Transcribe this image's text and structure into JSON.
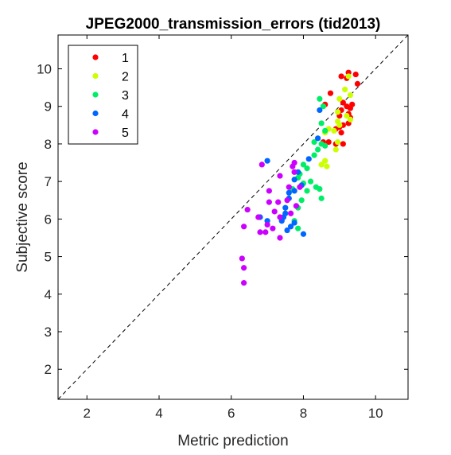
{
  "chart_data": {
    "type": "scatter",
    "title": "JPEG2000_transmission_errors (tid2013)",
    "xlabel": "Metric prediction",
    "ylabel": "Subjective score",
    "xlim": [
      1.2,
      10.9
    ],
    "ylim": [
      1.2,
      10.9
    ],
    "xticks": [
      2,
      4,
      6,
      8,
      10
    ],
    "yticks": [
      2,
      3,
      4,
      5,
      6,
      7,
      8,
      9,
      10
    ],
    "grid": false,
    "legend_position": "top-left",
    "reference_line": "y = x (dashed)",
    "series": [
      {
        "name": "1",
        "color": "#ff0000",
        "points": [
          [
            9.25,
            9.9
          ],
          [
            9.45,
            9.85
          ],
          [
            9.2,
            9.75
          ],
          [
            9.05,
            9.8
          ],
          [
            9.5,
            9.6
          ],
          [
            8.75,
            9.35
          ],
          [
            9.1,
            9.1
          ],
          [
            9.35,
            9.05
          ],
          [
            8.6,
            9.05
          ],
          [
            9.2,
            9.0
          ],
          [
            9.3,
            8.95
          ],
          [
            9.05,
            8.9
          ],
          [
            9.25,
            8.8
          ],
          [
            9.0,
            8.75
          ],
          [
            9.3,
            8.7
          ],
          [
            8.9,
            8.4
          ],
          [
            9.1,
            8.5
          ],
          [
            9.25,
            8.55
          ],
          [
            9.0,
            8.45
          ],
          [
            9.05,
            8.3
          ],
          [
            8.55,
            8.05
          ],
          [
            8.9,
            8.0
          ],
          [
            9.1,
            8.0
          ],
          [
            8.7,
            8.05
          ]
        ]
      },
      {
        "name": "2",
        "color": "#ccff00",
        "points": [
          [
            9.25,
            9.8
          ],
          [
            9.15,
            9.45
          ],
          [
            9.3,
            9.3
          ],
          [
            9.0,
            9.2
          ],
          [
            8.95,
            8.85
          ],
          [
            9.2,
            8.75
          ],
          [
            9.3,
            8.65
          ],
          [
            8.95,
            8.6
          ],
          [
            9.0,
            8.5
          ],
          [
            8.7,
            8.4
          ],
          [
            8.85,
            8.35
          ],
          [
            8.6,
            8.3
          ],
          [
            8.95,
            8.05
          ],
          [
            8.9,
            7.85
          ],
          [
            8.6,
            7.55
          ],
          [
            8.65,
            7.4
          ],
          [
            8.5,
            7.45
          ]
        ]
      },
      {
        "name": "3",
        "color": "#00ee66",
        "points": [
          [
            8.45,
            9.2
          ],
          [
            8.55,
            9.0
          ],
          [
            8.5,
            8.55
          ],
          [
            8.6,
            8.35
          ],
          [
            8.3,
            8.05
          ],
          [
            8.5,
            8.0
          ],
          [
            8.6,
            7.95
          ],
          [
            8.4,
            7.85
          ],
          [
            8.3,
            7.7
          ],
          [
            8.0,
            7.45
          ],
          [
            8.1,
            7.35
          ],
          [
            7.9,
            7.2
          ],
          [
            7.85,
            7.1
          ],
          [
            8.2,
            7.0
          ],
          [
            8.0,
            6.95
          ],
          [
            8.35,
            6.85
          ],
          [
            8.45,
            6.8
          ],
          [
            8.1,
            6.75
          ],
          [
            8.5,
            6.55
          ],
          [
            7.7,
            6.8
          ],
          [
            7.95,
            6.5
          ],
          [
            7.85,
            6.3
          ],
          [
            7.75,
            5.95
          ],
          [
            7.85,
            5.75
          ]
        ]
      },
      {
        "name": "4",
        "color": "#0066ff",
        "points": [
          [
            8.45,
            8.9
          ],
          [
            8.4,
            8.15
          ],
          [
            8.15,
            7.6
          ],
          [
            7.0,
            7.55
          ],
          [
            7.85,
            7.25
          ],
          [
            7.75,
            7.05
          ],
          [
            7.95,
            6.9
          ],
          [
            7.75,
            6.75
          ],
          [
            7.6,
            6.7
          ],
          [
            7.6,
            6.55
          ],
          [
            7.5,
            6.3
          ],
          [
            7.5,
            6.15
          ],
          [
            7.45,
            6.05
          ],
          [
            7.4,
            5.95
          ],
          [
            7.75,
            5.9
          ],
          [
            7.65,
            5.8
          ],
          [
            7.55,
            5.7
          ],
          [
            6.8,
            6.05
          ],
          [
            7.0,
            5.95
          ],
          [
            8.0,
            5.6
          ]
        ]
      },
      {
        "name": "5",
        "color": "#cc00ff",
        "points": [
          [
            6.85,
            7.45
          ],
          [
            7.75,
            7.5
          ],
          [
            7.7,
            7.4
          ],
          [
            7.75,
            7.25
          ],
          [
            7.35,
            7.15
          ],
          [
            7.6,
            6.85
          ],
          [
            7.9,
            6.85
          ],
          [
            7.05,
            6.75
          ],
          [
            7.55,
            6.5
          ],
          [
            7.3,
            6.45
          ],
          [
            7.05,
            6.45
          ],
          [
            7.8,
            6.35
          ],
          [
            7.65,
            6.15
          ],
          [
            6.45,
            6.25
          ],
          [
            7.2,
            6.2
          ],
          [
            7.35,
            6.05
          ],
          [
            6.75,
            6.05
          ],
          [
            7.0,
            5.85
          ],
          [
            7.15,
            5.75
          ],
          [
            6.35,
            5.8
          ],
          [
            6.8,
            5.65
          ],
          [
            6.95,
            5.65
          ],
          [
            7.35,
            5.5
          ],
          [
            6.3,
            4.95
          ],
          [
            6.35,
            4.7
          ],
          [
            6.35,
            4.3
          ]
        ]
      }
    ]
  }
}
